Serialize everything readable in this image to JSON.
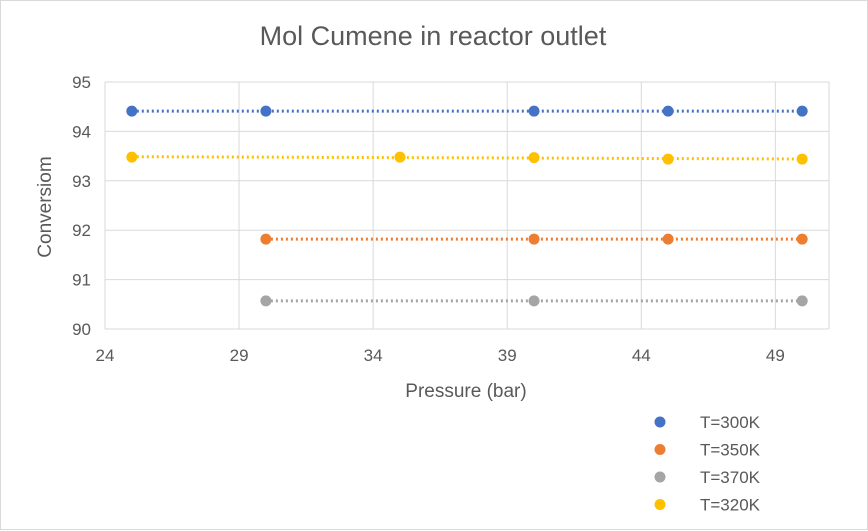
{
  "chart_data": {
    "type": "scatter",
    "title": "Mol Cumene in reactor outlet",
    "xlabel": "Pressure (bar)",
    "ylabel": "Conversiom",
    "xlim": [
      24,
      51
    ],
    "ylim": [
      90,
      95
    ],
    "xticks": [
      24,
      29,
      34,
      39,
      44,
      49
    ],
    "yticks": [
      90,
      91,
      92,
      93,
      94,
      95
    ],
    "grid": true,
    "legend_position": "bottom-right",
    "trendline": "linear, dotted",
    "series": [
      {
        "name": "T=300K",
        "color": "#4472C4",
        "x": [
          25,
          30,
          40,
          45,
          50
        ],
        "y": [
          94.41,
          94.41,
          94.41,
          94.41,
          94.41
        ]
      },
      {
        "name": "T=350K",
        "color": "#ED7D31",
        "x": [
          30,
          40,
          45,
          50
        ],
        "y": [
          91.82,
          91.82,
          91.82,
          91.82
        ]
      },
      {
        "name": "T=370K",
        "color": "#A5A5A5",
        "x": [
          30,
          40,
          50
        ],
        "y": [
          90.57,
          90.57,
          90.57
        ]
      },
      {
        "name": "T=320K",
        "color": "#FFC000",
        "x": [
          25,
          35,
          40,
          45,
          50
        ],
        "y": [
          93.48,
          93.48,
          93.47,
          93.44,
          93.44
        ]
      }
    ]
  }
}
